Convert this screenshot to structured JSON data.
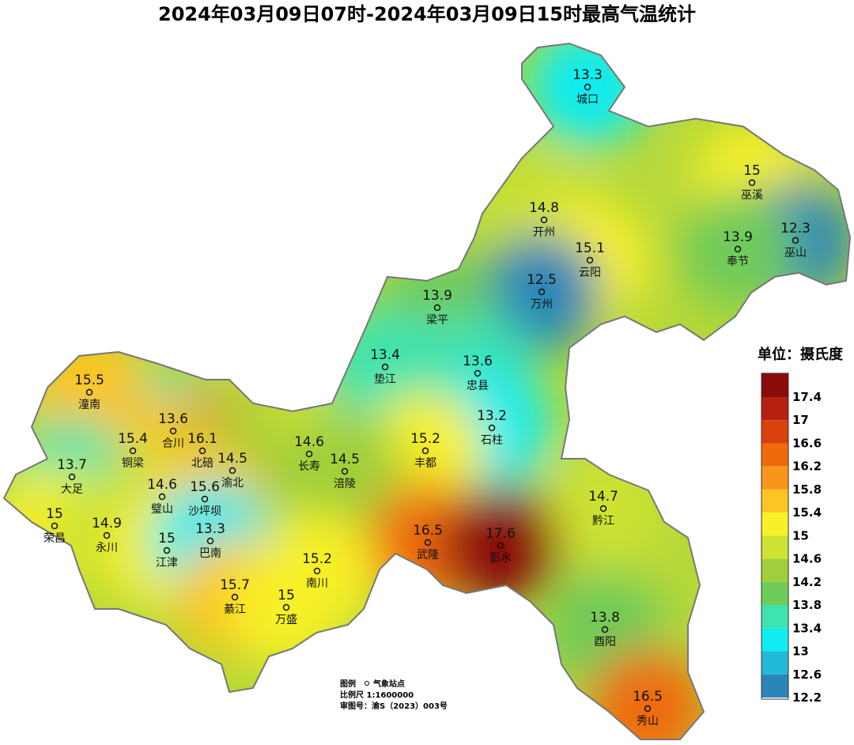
{
  "title": "2024年03月09日07时-2024年03月09日15时最高气温统计",
  "stations": [
    {
      "name": "城口",
      "value": 13.3
    },
    {
      "name": "巫溪",
      "value": 15
    },
    {
      "name": "开州",
      "value": 14.8
    },
    {
      "name": "巫山",
      "value": 12.3
    },
    {
      "name": "奉节",
      "value": 13.9
    },
    {
      "name": "云阳",
      "value": 15.1
    },
    {
      "name": "万州",
      "value": 12.5
    },
    {
      "name": "梁平",
      "value": 13.9
    },
    {
      "name": "垫江",
      "value": 13.4
    },
    {
      "name": "忠县",
      "value": 13.6
    },
    {
      "name": "潼南",
      "value": 15.5
    },
    {
      "name": "合川",
      "value": 13.6
    },
    {
      "name": "石柱",
      "value": 13.2
    },
    {
      "name": "北碚",
      "value": 16.1
    },
    {
      "name": "铜梁",
      "value": 15.4
    },
    {
      "name": "丰都",
      "value": 15.2
    },
    {
      "name": "长寿",
      "value": 14.6
    },
    {
      "name": "渝北",
      "value": 14.5
    },
    {
      "name": "涪陵",
      "value": 14.5
    },
    {
      "name": "大足",
      "value": 13.7
    },
    {
      "name": "璧山",
      "value": 14.6
    },
    {
      "name": "沙坪坝",
      "value": 15.6
    },
    {
      "name": "黔江",
      "value": 14.7
    },
    {
      "name": "荣昌",
      "value": 15
    },
    {
      "name": "永川",
      "value": 14.9
    },
    {
      "name": "武隆",
      "value": 16.5
    },
    {
      "name": "彭水",
      "value": 17.6
    },
    {
      "name": "江津",
      "value": 15
    },
    {
      "name": "巴南",
      "value": 13.3
    },
    {
      "name": "南川",
      "value": 15.2
    },
    {
      "name": "綦江",
      "value": 15.7
    },
    {
      "name": "万盛",
      "value": 15
    },
    {
      "name": "酉阳",
      "value": 13.8
    },
    {
      "name": "秀山",
      "value": 16.5
    }
  ],
  "legend": {
    "title": "单位：摄氏度",
    "ticks": [
      17.4,
      17,
      16.6,
      16.2,
      15.8,
      15.4,
      15,
      14.6,
      14.2,
      13.8,
      13.4,
      13,
      12.6,
      12.2
    ],
    "colors": [
      "#8b0b0b",
      "#b52010",
      "#d9400c",
      "#f06a0c",
      "#f8961a",
      "#fcc424",
      "#f8f028",
      "#cde232",
      "#9fcf3a",
      "#6fcb5a",
      "#3de3b0",
      "#10ecf0",
      "#22b8d8",
      "#2a86b8"
    ]
  },
  "notes": {
    "legend_label": "图例",
    "station_label": "气象站点",
    "scale": "比例尺  1:1600000",
    "approval": "审图号：渝S（2023）003号"
  }
}
